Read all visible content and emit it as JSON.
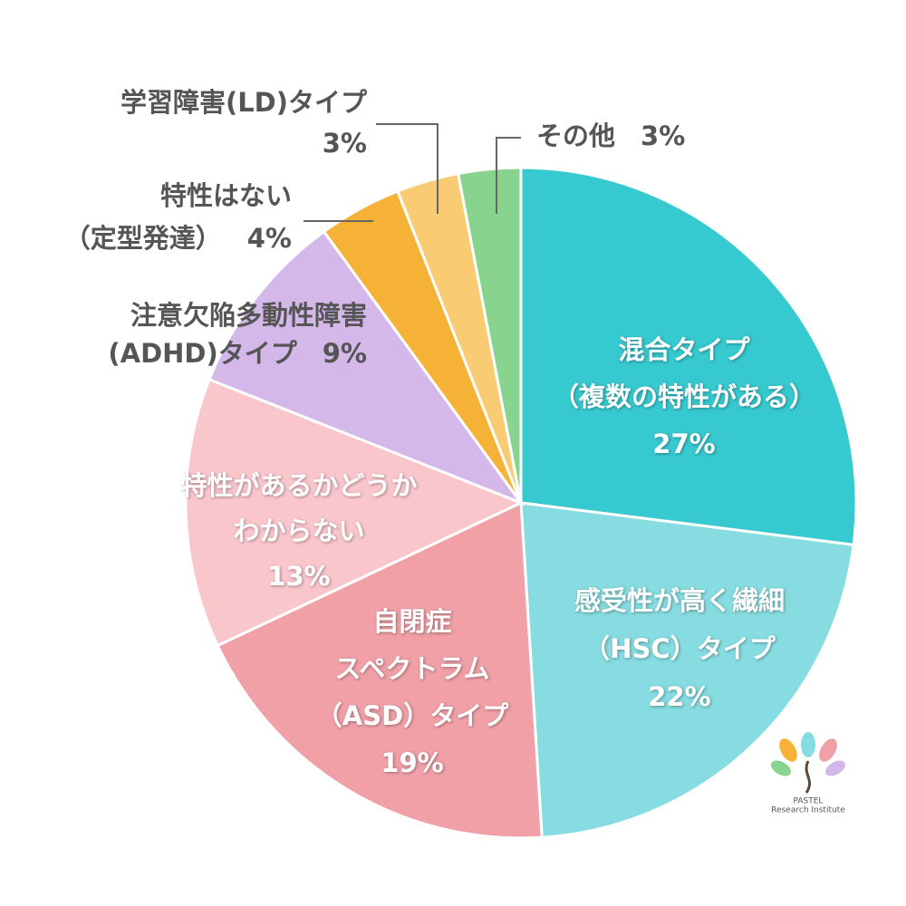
{
  "chart_data": {
    "type": "pie",
    "categories": [
      "混合タイプ\n（複数の特性がある）",
      "感受性が高く繊細\n（HSC）タイプ",
      "自閉症\nスペクトラム\n（ASD）タイプ",
      "特性があるかどうか\nわからない",
      "注意欠陥多動性障害\n(ADHD)タイプ",
      "特性はない\n（定型発達）",
      "学習障害(LD)タイプ",
      "その他"
    ],
    "values": [
      27,
      22,
      19,
      13,
      9,
      4,
      3,
      3
    ],
    "value_labels": [
      "27%",
      "22%",
      "19%",
      "13%",
      "9%",
      "4%",
      "3%",
      "3%"
    ],
    "colors": [
      "#36c9cf",
      "#86dce0",
      "#f0a0a6",
      "#f9c6cc",
      "#d4b8ea",
      "#f6b236",
      "#f9cc74",
      "#88d48f"
    ]
  },
  "logo": {
    "name": "PASTEL",
    "subtitle": "Research Institute"
  }
}
